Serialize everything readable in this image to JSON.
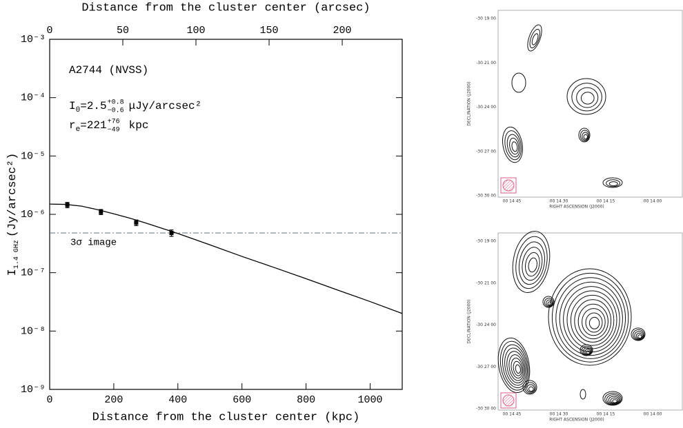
{
  "chart_data": {
    "type": "line",
    "log_y": true,
    "title_top": "Distance from the cluster center (arcsec)",
    "x_label": "Distance from the cluster center (kpc)",
    "y_label": {
      "symbol": "I",
      "sub": "1.4 GHz",
      "unit": "(Jy/arcsec²)"
    },
    "annotations": {
      "name": "A2744 (NVSS)",
      "i0": {
        "symbol": "I",
        "sub": "0",
        "value": "=2.5",
        "plus": "+0.8",
        "minus": "−0.6",
        "unit": "μJy/arcsec²"
      },
      "re": {
        "symbol": "r",
        "sub": "e",
        "value": "=221",
        "plus": "+76",
        "minus": "−49",
        "unit": "kpc"
      }
    },
    "threshold": {
      "value": 4.8e-07,
      "label": "3σ image",
      "color": "#5a6e7e"
    },
    "points": {
      "x": [
        55,
        160,
        270,
        380
      ],
      "values": [
        1.45e-06,
        1.1e-06,
        7.2e-07,
        4.8e-07
      ],
      "errors": [
        1.5e-07,
        1.1e-07,
        8e-08,
        6e-08
      ],
      "color": "#000000"
    },
    "model": {
      "x": [
        0,
        50,
        100,
        150,
        200,
        250,
        300,
        400,
        500,
        600,
        700,
        800,
        900,
        1000,
        1100
      ],
      "values": [
        1.5e-06,
        1.48e-06,
        1.38e-06,
        1.2e-06,
        1.02e-06,
        8.6e-07,
        7.1e-07,
        4.7e-07,
        3e-07,
        1.9e-07,
        1.23e-07,
        7.9e-08,
        5e-08,
        3.2e-08,
        2e-08
      ],
      "color": "#000000"
    },
    "xlim": [
      0,
      1100
    ],
    "xticks": [
      0,
      200,
      400,
      600,
      800,
      1000
    ],
    "x2lim": [
      0,
      241
    ],
    "x2ticks": [
      0,
      50,
      100,
      150,
      200
    ],
    "ylim": [
      1e-09,
      0.001
    ],
    "yticks": [
      {
        "value": 1e-09,
        "label": "10⁻⁹"
      },
      {
        "value": 1e-08,
        "label": "10⁻⁸"
      },
      {
        "value": 1e-07,
        "label": "10⁻⁷"
      },
      {
        "value": 1e-06,
        "label": "10⁻⁶"
      },
      {
        "value": 1e-05,
        "label": "10⁻⁵"
      },
      {
        "value": 0.0001,
        "label": "10⁻⁴"
      },
      {
        "value": 0.001,
        "label": "10⁻³"
      }
    ]
  },
  "maps": [
    {
      "y_label": "DECLINATION (J2000)",
      "x_label": "RIGHT ASCENSION (J2000)",
      "yticks": [
        "-30 19 00",
        "-30 21 00",
        "-30 24 00",
        "-30 27 00",
        "-30 30 00"
      ],
      "xticks": [
        "00 14 45",
        "00 14 30",
        "00 14 15",
        "00 14 00"
      ]
    },
    {
      "y_label": "DECLINATION (J2000)",
      "x_label": "RIGHT ASCENSION (J2000)",
      "yticks": [
        "-30 19 00",
        "-30 21 00",
        "-30 24 00",
        "-30 27 00",
        "-30 30 00"
      ],
      "xticks": [
        "00 14 45",
        "00 14 30",
        "00 14 15",
        "00 14 00"
      ]
    }
  ]
}
